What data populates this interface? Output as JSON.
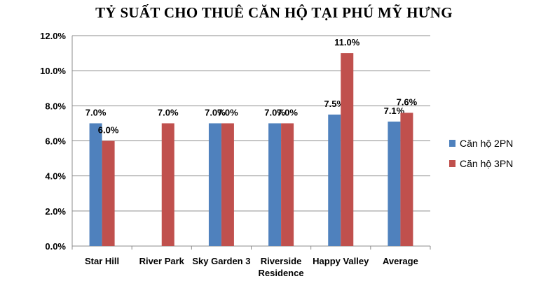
{
  "chart_data": {
    "type": "bar",
    "title": "TỶ SUẤT CHO THUÊ CĂN HỘ TẠI PHÚ MỸ HƯNG",
    "categories": [
      [
        "Star Hill"
      ],
      [
        "River Park"
      ],
      [
        "Sky Garden 3"
      ],
      [
        "Riverside",
        "Residence"
      ],
      [
        "Happy Valley"
      ],
      [
        "Average"
      ]
    ],
    "series": [
      {
        "name": "Căn hộ 2PN",
        "color": "#4F81BD",
        "values": [
          0.07,
          null,
          0.07,
          0.07,
          0.075,
          0.071
        ],
        "labels": [
          "7.0%",
          null,
          "7.0%",
          "7.0%",
          "7.5%",
          "7.1%"
        ]
      },
      {
        "name": "Căn hộ 3PN",
        "color": "#C0504D",
        "values": [
          0.06,
          0.07,
          0.07,
          0.07,
          0.11,
          0.076
        ],
        "labels": [
          "6.0%",
          "7.0%",
          "7.0%",
          "7.0%",
          "11.0%",
          "7.6%"
        ]
      }
    ],
    "yticks": [
      "0.0%",
      "2.0%",
      "4.0%",
      "6.0%",
      "8.0%",
      "10.0%",
      "12.0%"
    ],
    "ylim": [
      0,
      0.12
    ],
    "ystep": 0.02,
    "grid": true,
    "legend": "right"
  }
}
